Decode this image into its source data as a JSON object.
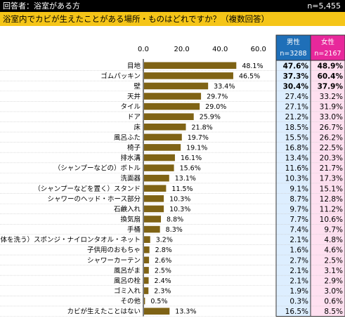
{
  "header": {
    "respondents_label": "回答者：浴室がある方",
    "sample_size": "n=5,455"
  },
  "question": "浴室内でカビが生えたことがある場所・ものはどれですか？（複数回答）",
  "colors": {
    "bar": "#7f6315",
    "male_header": "#1f6fb8",
    "female_header": "#e8289b",
    "male_col_bg": "#ddeeff",
    "female_col_bg": "#ffe0f0",
    "question_band": "#f5c518"
  },
  "table_headers": {
    "male": {
      "label": "男性",
      "n": "n=3288"
    },
    "female": {
      "label": "女性",
      "n": "n=2167"
    }
  },
  "chart_data": {
    "type": "bar",
    "orientation": "horizontal",
    "xlim": [
      0,
      60
    ],
    "x_ticks": [
      "0.0",
      "20.0",
      "40.0",
      "60.0"
    ],
    "categories": [
      "目地",
      "ゴムパッキン",
      "壁",
      "天井",
      "タイル",
      "ドア",
      "床",
      "風呂ふた",
      "椅子",
      "排水溝",
      "（シャンプーなどの）ボトル",
      "洗面器",
      "（シャンプーなどを置く）スタンド",
      "シャワーのヘッド・ホース部分",
      "石鹸入れ",
      "換気扇",
      "手桶",
      "（体を洗う）スポンジ・ナイロンタオル・ネット",
      "子供用のおもちゃ",
      "シャワーカーテン",
      "風呂がま",
      "風呂の栓",
      "ゴミ入れ",
      "その他",
      "カビが生えたことはない"
    ],
    "values": [
      48.1,
      46.5,
      33.4,
      29.7,
      29.0,
      25.9,
      21.8,
      19.7,
      19.1,
      16.1,
      15.6,
      13.1,
      11.5,
      10.3,
      10.3,
      8.8,
      8.3,
      3.2,
      2.8,
      2.6,
      2.5,
      2.4,
      2.3,
      0.5,
      13.3
    ],
    "value_labels": [
      "48.1%",
      "46.5%",
      "33.4%",
      "29.7%",
      "29.0%",
      "25.9%",
      "21.8%",
      "19.7%",
      "19.1%",
      "16.1%",
      "15.6%",
      "13.1%",
      "11.5%",
      "10.3%",
      "10.3%",
      "8.8%",
      "8.3%",
      "3.2%",
      "2.8%",
      "2.6%",
      "2.5%",
      "2.4%",
      "2.3%",
      "0.5%",
      "13.3%"
    ],
    "male": [
      "47.6%",
      "37.3%",
      "30.4%",
      "27.4%",
      "27.1%",
      "21.2%",
      "18.5%",
      "15.5%",
      "16.8%",
      "13.4%",
      "11.6%",
      "10.3%",
      "9.1%",
      "8.7%",
      "9.7%",
      "7.7%",
      "7.4%",
      "2.1%",
      "1.6%",
      "2.7%",
      "2.1%",
      "2.1%",
      "1.9%",
      "0.3%",
      "16.5%"
    ],
    "female": [
      "48.9%",
      "60.4%",
      "37.9%",
      "33.2%",
      "31.9%",
      "33.0%",
      "26.7%",
      "26.2%",
      "22.5%",
      "20.3%",
      "21.7%",
      "17.3%",
      "15.1%",
      "12.8%",
      "11.2%",
      "10.6%",
      "9.7%",
      "4.8%",
      "4.6%",
      "2.5%",
      "3.1%",
      "2.9%",
      "3.0%",
      "0.6%",
      "8.5%"
    ],
    "bold_rows": [
      0,
      1,
      2
    ]
  }
}
